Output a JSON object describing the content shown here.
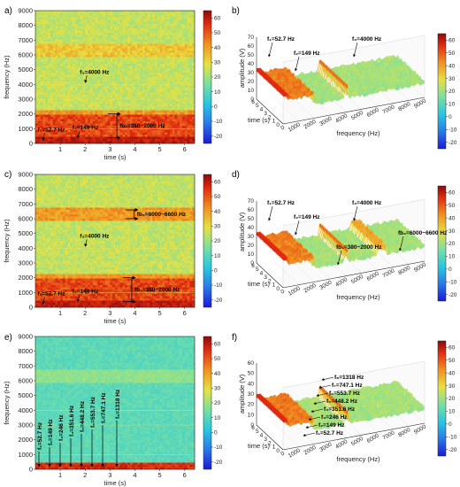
{
  "colors": {
    "low": "#2a2ae0",
    "mid": "#e8e040",
    "high": "#c01010",
    "axis": "#222222"
  },
  "chart_data": [
    {
      "panel": "a)",
      "type": "heatmap",
      "xlabel": "time (s)",
      "ylabel": "frequency (Hz)",
      "xticks": [
        "1",
        "2",
        "3",
        "4",
        "5",
        "6"
      ],
      "yticks": [
        "0",
        "1000",
        "2000",
        "3000",
        "4000",
        "5000",
        "6000",
        "7000",
        "8000",
        "9000"
      ],
      "xlim": [
        0,
        6.4
      ],
      "ylim": [
        0,
        9000
      ],
      "colorbar": {
        "ticks": [
          "60",
          "50",
          "40",
          "30",
          "20",
          "10",
          "0",
          "-10",
          "-20"
        ],
        "range": [
          -25,
          65
        ]
      },
      "annotations": [
        {
          "label": "f₁=52.7 Hz",
          "x": 0.3,
          "y": 90
        },
        {
          "label": "f₂=149 Hz",
          "x": 1.7,
          "y": 250
        },
        {
          "label": "f₃=4000 Hz",
          "x": 2.0,
          "y": 4000
        },
        {
          "label": "fb₁=380~2000 Hz",
          "x": 3.7,
          "y": 1200
        }
      ]
    },
    {
      "panel": "b)",
      "type": "surface3d",
      "xlabel": "frequency (Hz)",
      "ylabel": "time (s)",
      "zlabel": "amplitude (V)",
      "xticks": [
        "0",
        "1000",
        "2000",
        "3000",
        "4000",
        "5000",
        "6000",
        "7000",
        "8000",
        "9000"
      ],
      "yticks": [
        "0",
        "1",
        "2",
        "3",
        "4",
        "5",
        "6"
      ],
      "zticks": [
        "0",
        "10",
        "20",
        "30",
        "40",
        "50",
        "60",
        "70"
      ],
      "colorbar": {
        "ticks": [
          "60",
          "50",
          "40",
          "30",
          "20",
          "10",
          "0",
          "-10",
          "-20"
        ],
        "range": [
          -25,
          65
        ]
      },
      "annotations": [
        {
          "label": "f₁=52.7 Hz"
        },
        {
          "label": "f₂=149 Hz"
        },
        {
          "label": "f₃=4000 Hz"
        }
      ]
    },
    {
      "panel": "c)",
      "type": "heatmap",
      "xlabel": "time (s)",
      "ylabel": "frequency (Hz)",
      "xticks": [
        "1",
        "2",
        "3",
        "4",
        "5",
        "6"
      ],
      "yticks": [
        "0",
        "1000",
        "2000",
        "3000",
        "4000",
        "5000",
        "6000",
        "7000",
        "8000",
        "9000"
      ],
      "xlim": [
        0,
        6.4
      ],
      "ylim": [
        0,
        9000
      ],
      "colorbar": {
        "ticks": [
          "60",
          "50",
          "40",
          "30",
          "20",
          "10",
          "0",
          "-10",
          "-20"
        ],
        "range": [
          -25,
          65
        ]
      },
      "annotations": [
        {
          "label": "f₁=52.7 Hz",
          "x": 0.3,
          "y": 90
        },
        {
          "label": "f₂=149 Hz",
          "x": 1.7,
          "y": 250
        },
        {
          "label": "f₃=4000 Hz",
          "x": 2.0,
          "y": 4000
        },
        {
          "label": "fb₁=380~2000 Hz",
          "x": 4.3,
          "y": 1200
        },
        {
          "label": "fb₂=6000~6600 Hz",
          "x": 4.4,
          "y": 6300
        }
      ]
    },
    {
      "panel": "d)",
      "type": "surface3d",
      "xlabel": "frequency (Hz)",
      "ylabel": "time (s)",
      "zlabel": "amplitude (V)",
      "xticks": [
        "0",
        "1000",
        "2000",
        "3000",
        "4000",
        "5000",
        "6000",
        "7000",
        "8000",
        "9000"
      ],
      "yticks": [
        "0",
        "1",
        "2",
        "3",
        "4",
        "5",
        "6"
      ],
      "zticks": [
        "0",
        "10",
        "20",
        "30",
        "40",
        "50",
        "60",
        "70"
      ],
      "colorbar": {
        "ticks": [
          "60",
          "50",
          "40",
          "30",
          "20",
          "10",
          "0",
          "-10",
          "-20"
        ],
        "range": [
          -25,
          65
        ]
      },
      "annotations": [
        {
          "label": "f₁=52.7 Hz"
        },
        {
          "label": "f₂=149 Hz"
        },
        {
          "label": "f₃=4000 Hz"
        },
        {
          "label": "fb₁=380~2000 Hz"
        },
        {
          "label": "fb₂=6000~6600 Hz"
        }
      ]
    },
    {
      "panel": "e)",
      "type": "heatmap",
      "xlabel": "time (s)",
      "ylabel": "frequency (Hz)",
      "xticks": [
        "1",
        "2",
        "3",
        "4",
        "5",
        "6"
      ],
      "yticks": [
        "0",
        "1000",
        "2000",
        "3000",
        "4000",
        "5000",
        "6000",
        "7000",
        "8000",
        "9000"
      ],
      "xlim": [
        0,
        6.4
      ],
      "ylim": [
        0,
        9000
      ],
      "colorbar": {
        "ticks": [
          "60",
          "50",
          "40",
          "30",
          "20",
          "10",
          "0",
          "-10",
          "-20"
        ],
        "range": [
          -25,
          65
        ]
      },
      "annotations": [
        {
          "label": "f₁=52.7 Hz"
        },
        {
          "label": "f₂=149 Hz"
        },
        {
          "label": "f₃=246 Hz"
        },
        {
          "label": "f₄=351.6 Hz"
        },
        {
          "label": "f₅=448.2 Hz"
        },
        {
          "label": "f₆=553.7 Hz"
        },
        {
          "label": "f₇=747.1 Hz"
        },
        {
          "label": "f₈=1318 Hz"
        }
      ]
    },
    {
      "panel": "f)",
      "type": "surface3d",
      "xlabel": "frequency (Hz)",
      "ylabel": "time (s)",
      "zlabel": "amplitude (V)",
      "xticks": [
        "0",
        "1000",
        "2000",
        "3000",
        "4000",
        "5000",
        "6000",
        "7000",
        "8000",
        "9000"
      ],
      "yticks": [
        "0",
        "1",
        "2",
        "3",
        "4",
        "5",
        "6"
      ],
      "zticks": [
        "0",
        "10",
        "20",
        "30",
        "40",
        "50",
        "60"
      ],
      "colorbar": {
        "ticks": [
          "60",
          "50",
          "40",
          "30",
          "20",
          "10",
          "0",
          "-10",
          "-20"
        ],
        "range": [
          -25,
          65
        ]
      },
      "annotations": [
        {
          "label": "f₈=1318 Hz"
        },
        {
          "label": "f₇=747.1 Hz"
        },
        {
          "label": "f₆=553.7 Hz"
        },
        {
          "label": "f₅=448.2 Hz"
        },
        {
          "label": "f₄=351.6 Hz"
        },
        {
          "label": "f₃=246 Hz"
        },
        {
          "label": "f₂=149 Hz"
        },
        {
          "label": "f₁=52.7 Hz"
        }
      ]
    }
  ]
}
